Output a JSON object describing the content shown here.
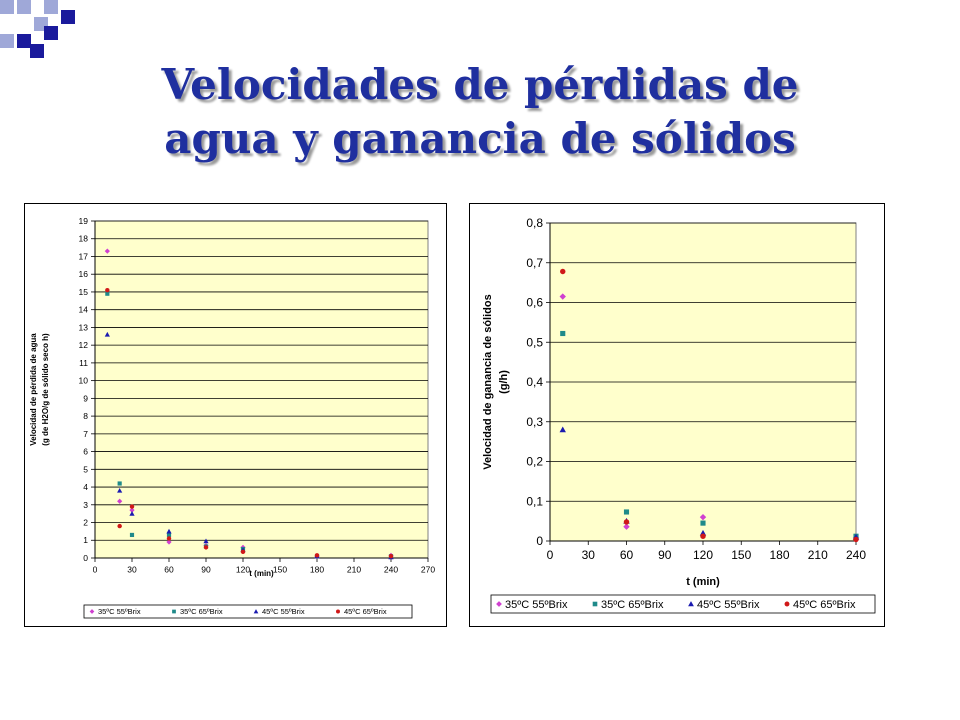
{
  "slide": {
    "title_line1": "Velocidades de pérdidas de",
    "title_line2": "agua y ganancia de sólidos",
    "colors": {
      "title": "#1f2f9f",
      "deco_dark": "#1a1a9c",
      "deco_light": "#9fa8d8",
      "plot_bg": "#ffffcc"
    }
  },
  "chart_data": [
    {
      "type": "scatter",
      "title": "",
      "xlabel": "t (min)",
      "ylabel_line1": "Velocidad de pérdida de agua",
      "ylabel_line2": "(g de H2O/g de sólido seco h)",
      "xlim": [
        0,
        270
      ],
      "ylim": [
        0,
        19
      ],
      "xticks": [
        0,
        30,
        60,
        90,
        120,
        150,
        180,
        210,
        240,
        270
      ],
      "yticks": [
        0,
        1,
        2,
        3,
        4,
        5,
        6,
        7,
        8,
        9,
        10,
        11,
        12,
        13,
        14,
        15,
        16,
        17,
        18,
        19
      ],
      "grid": "horizontal",
      "legend": "bottom",
      "series": [
        {
          "name": "35ºC 55ºBrix",
          "marker": "diamond",
          "color": "#d040d0",
          "x": [
            10,
            20,
            30,
            60,
            90,
            120,
            180,
            240
          ],
          "y": [
            17.3,
            3.2,
            2.7,
            0.9,
            0.7,
            0.6,
            0.1,
            0.15
          ]
        },
        {
          "name": "35ºC 65ºBrix",
          "marker": "square",
          "color": "#1f8a8a",
          "x": [
            10,
            20,
            30,
            60,
            90,
            120,
            180,
            240
          ],
          "y": [
            14.9,
            4.2,
            1.3,
            1.3,
            0.65,
            0.5,
            0.1,
            0.1
          ]
        },
        {
          "name": "45ºC 55ºBrix",
          "marker": "triangle",
          "color": "#1a1ab0",
          "x": [
            10,
            20,
            30,
            60,
            90,
            120,
            180,
            240
          ],
          "y": [
            12.6,
            3.8,
            2.5,
            1.5,
            0.95,
            0.45,
            0.1,
            0.05
          ]
        },
        {
          "name": "45ºC 65ºBrix",
          "marker": "circle",
          "color": "#d01818",
          "x": [
            10,
            20,
            30,
            60,
            90,
            120,
            180,
            240
          ],
          "y": [
            15.1,
            1.8,
            2.9,
            1.1,
            0.6,
            0.35,
            0.15,
            0.1
          ]
        }
      ]
    },
    {
      "type": "scatter",
      "title": "",
      "xlabel": "t (min)",
      "ylabel_line1": "Velocidad de ganancia de sólidos",
      "ylabel_line2": "(g/h)",
      "xlim": [
        0,
        240
      ],
      "ylim": [
        0,
        0.8
      ],
      "xticks": [
        0,
        30,
        60,
        90,
        120,
        150,
        180,
        210,
        240
      ],
      "xtick_labels": [
        "0",
        "30",
        "60",
        "90",
        "120",
        "150",
        "180",
        "210",
        "240"
      ],
      "yticks": [
        0,
        0.1,
        0.2,
        0.3,
        0.4,
        0.5,
        0.6,
        0.7,
        0.8
      ],
      "ytick_labels": [
        "0",
        "0,1",
        "0,2",
        "0,3",
        "0,4",
        "0,5",
        "0,6",
        "0,7",
        "0,8"
      ],
      "grid": "horizontal",
      "legend": "bottom",
      "series": [
        {
          "name": "35ºC 55ºBrix",
          "marker": "diamond",
          "color": "#d040d0",
          "x": [
            10,
            60,
            120,
            240
          ],
          "y": [
            0.615,
            0.036,
            0.06,
            0.008
          ]
        },
        {
          "name": "35ºC 65ºBrix",
          "marker": "square",
          "color": "#1f8a8a",
          "x": [
            10,
            60,
            120,
            240
          ],
          "y": [
            0.522,
            0.073,
            0.045,
            0.012
          ]
        },
        {
          "name": "45ºC 55ºBrix",
          "marker": "triangle",
          "color": "#1a1ab0",
          "x": [
            10,
            60,
            120,
            240
          ],
          "y": [
            0.28,
            0.05,
            0.02,
            0.01
          ]
        },
        {
          "name": "45ºC 65ºBrix",
          "marker": "circle",
          "color": "#d01818",
          "x": [
            10,
            60,
            120,
            240
          ],
          "y": [
            0.678,
            0.048,
            0.012,
            0.004
          ]
        }
      ]
    }
  ]
}
